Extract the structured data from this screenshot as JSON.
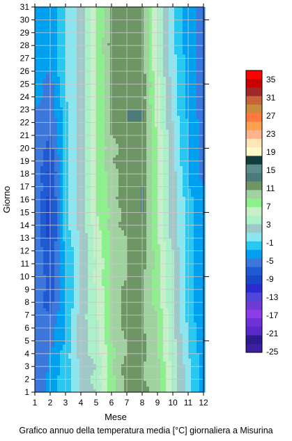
{
  "chart_data": {
    "type": "heatmap",
    "subtype": "filled-contour",
    "title": "Grafico annuo della temperatura media [°C] giornaliera a Misurina",
    "xlabel": "Mese",
    "ylabel": "Giorno",
    "xlim": [
      1,
      12
    ],
    "ylim": [
      1,
      31
    ],
    "x_ticks": [
      "1",
      "2",
      "3",
      "4",
      "5",
      "6",
      "7",
      "8",
      "9",
      "10",
      "11",
      "12"
    ],
    "y_ticks": [
      "1",
      "2",
      "3",
      "4",
      "5",
      "6",
      "7",
      "8",
      "9",
      "10",
      "11",
      "12",
      "13",
      "14",
      "15",
      "16",
      "17",
      "18",
      "19",
      "20",
      "21",
      "22",
      "23",
      "24",
      "25",
      "26",
      "27",
      "28",
      "29",
      "30",
      "31"
    ],
    "grid": true,
    "colorbar": {
      "position": "right",
      "tick_labels": [
        "35",
        "31",
        "27",
        "23",
        "19",
        "15",
        "11",
        "7",
        "3",
        "-1",
        "-5",
        "-9",
        "-13",
        "-17",
        "-21",
        "-25"
      ],
      "levels": [
        -25,
        -23,
        -21,
        -19,
        -17,
        -15,
        -13,
        -11,
        -9,
        -7,
        -5,
        -3,
        -1,
        1,
        3,
        5,
        7,
        9,
        11,
        13,
        15,
        17,
        19,
        21,
        23,
        25,
        27,
        29,
        31,
        33,
        35,
        37
      ],
      "colors": [
        "#3c1ea0",
        "#2d1a8c",
        "#5a28c8",
        "#7030d8",
        "#8c3ce8",
        "#6e3cd2",
        "#5046dc",
        "#2a2ad2",
        "#1a46c8",
        "#1e5ad2",
        "#3c78dc",
        "#00a0f0",
        "#28c8f0",
        "#8ce6f0",
        "#a0c8c8",
        "#aaf0c8",
        "#c8f0c8",
        "#8cf08c",
        "#a0d2a0",
        "#6e9664",
        "#4b7b78",
        "#5a8c8c",
        "#143c3c",
        "#fffac8",
        "#ffe6b4",
        "#ffb48c",
        "#ffa050",
        "#ff7840",
        "#c88c3c",
        "#c8643c",
        "#a02828",
        "#c80000",
        "#ff0000"
      ]
    },
    "months": [
      1,
      2,
      3,
      4,
      5,
      6,
      7,
      8,
      9,
      10,
      11,
      12
    ],
    "days": [
      1,
      2,
      3,
      4,
      5,
      6,
      7,
      8,
      9,
      10,
      11,
      12,
      13,
      14,
      15,
      16,
      17,
      18,
      19,
      20,
      21,
      22,
      23,
      24,
      25,
      26,
      27,
      28,
      29,
      30,
      31
    ],
    "series": [
      {
        "month": 1,
        "values": [
          -7,
          -7,
          -7,
          -6,
          -6,
          -6,
          -6,
          -6,
          -5,
          -5,
          -5,
          -5,
          -5,
          -5,
          -5,
          -5,
          -5,
          -5,
          -5,
          -5,
          -5,
          -5,
          -5,
          -4,
          -4,
          -4,
          -4,
          -4,
          -4,
          -4,
          -4
        ]
      },
      {
        "month": 2,
        "values": [
          -4,
          -4,
          -5,
          -5,
          -6,
          -6,
          -7,
          -8,
          -8,
          -8,
          -9,
          -9,
          -10,
          -10,
          -10,
          -10,
          -9,
          -10,
          -9,
          -8,
          -7,
          -7,
          -6,
          -6,
          -6,
          -5,
          -5,
          -5,
          -5,
          -5,
          -5
        ]
      },
      {
        "month": 3,
        "values": [
          -2,
          -2,
          -2,
          -2,
          -3,
          -3,
          -3,
          -3,
          -3,
          -3,
          -3,
          -3,
          -2,
          -2,
          -2,
          -2,
          -2,
          -2,
          -2,
          -2,
          -2,
          -2,
          -2,
          -1,
          -1,
          -1,
          -1,
          -1,
          -1,
          -1,
          -1
        ]
      },
      {
        "month": 4,
        "values": [
          1,
          1,
          1,
          2,
          2,
          2,
          2,
          1,
          1,
          1,
          1,
          1,
          1,
          2,
          2,
          2,
          2,
          2,
          2,
          2,
          2,
          2,
          2,
          2,
          2,
          2,
          2,
          2,
          2,
          2,
          2
        ]
      },
      {
        "month": 5,
        "values": [
          3,
          4,
          3,
          4,
          4,
          4,
          5,
          5,
          5,
          6,
          5,
          6,
          6,
          6,
          7,
          7,
          7,
          7,
          7,
          7,
          7,
          7,
          7,
          7,
          7,
          7,
          7,
          7,
          7,
          7,
          7
        ]
      },
      {
        "month": 6,
        "values": [
          8,
          8,
          9,
          8,
          9,
          9,
          9,
          9,
          9,
          9,
          9,
          9,
          9,
          10,
          9,
          10,
          10,
          10,
          11,
          10,
          11,
          11,
          11,
          11,
          11,
          11,
          11,
          12,
          11,
          11,
          11
        ]
      },
      {
        "month": 7,
        "values": [
          12,
          12,
          12,
          11,
          11,
          12,
          12,
          12,
          12,
          11,
          11,
          11,
          11,
          12,
          12,
          13,
          12,
          12,
          12,
          12,
          12,
          13,
          13,
          13,
          13,
          13,
          13,
          13,
          13,
          13,
          13
        ]
      },
      {
        "month": 8,
        "values": [
          12,
          11,
          11,
          12,
          12,
          11,
          11,
          11,
          11,
          11,
          12,
          12,
          12,
          12,
          13,
          13,
          13,
          12,
          12,
          13,
          12,
          13,
          13,
          12,
          13,
          12,
          12,
          12,
          12,
          12,
          12
        ]
      },
      {
        "month": 9,
        "values": [
          10,
          10,
          10,
          9,
          9,
          9,
          9,
          8,
          8,
          8,
          8,
          8,
          7,
          7,
          7,
          7,
          7,
          7,
          7,
          7,
          7,
          6,
          6,
          6,
          6,
          5,
          5,
          5,
          5,
          5,
          5
        ]
      },
      {
        "month": 10,
        "values": [
          4,
          4,
          4,
          4,
          4,
          3,
          3,
          3,
          3,
          3,
          3,
          3,
          2,
          2,
          2,
          2,
          2,
          2,
          1,
          1,
          1,
          1,
          0,
          0,
          0,
          0,
          0,
          -1,
          -1,
          -1,
          -1
        ]
      },
      {
        "month": 11,
        "values": [
          0,
          0,
          0,
          -1,
          -1,
          -1,
          -2,
          -2,
          -2,
          -2,
          -2,
          -2,
          -2,
          -2,
          -2,
          -2,
          -3,
          -3,
          -3,
          -3,
          -3,
          -3,
          -4,
          -4,
          -4,
          -4,
          -4,
          -4,
          -4,
          -4,
          -4
        ]
      },
      {
        "month": 12,
        "values": [
          -4,
          -4,
          -4,
          -4,
          -5,
          -5,
          -5,
          -5,
          -5,
          -5,
          -5,
          -5,
          -5,
          -5,
          -5,
          -5,
          -5,
          -6,
          -6,
          -6,
          -6,
          -6,
          -6,
          -6,
          -6,
          -6,
          -6,
          -6,
          -6,
          -6,
          -6
        ]
      }
    ]
  }
}
